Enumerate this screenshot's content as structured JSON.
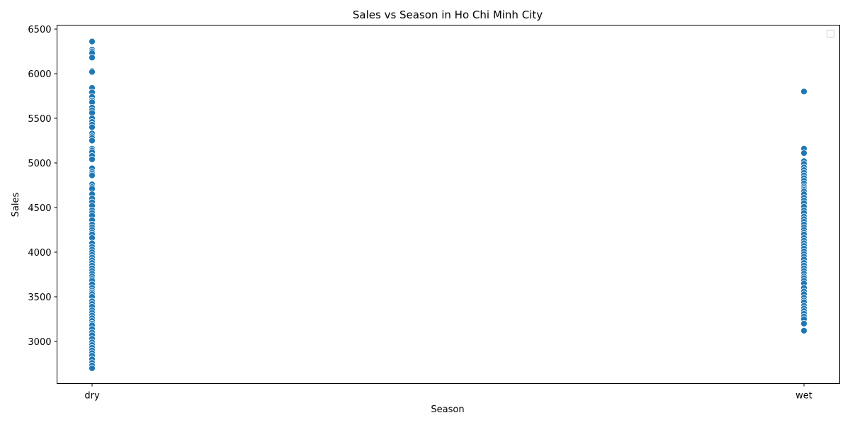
{
  "chart_data": {
    "type": "scatter",
    "title": "Sales vs Season in Ho Chi Minh City",
    "xlabel": "Season",
    "ylabel": "Sales",
    "categories": [
      "dry",
      "wet"
    ],
    "yticks": [
      3000,
      3500,
      4000,
      4500,
      5000,
      5500,
      6000,
      6500
    ],
    "ylim": [
      2500,
      6520
    ],
    "grid": false,
    "legend": {
      "placement": "top-right",
      "entries": []
    },
    "marker_color": "#1f77b4",
    "series": [
      {
        "category": "dry",
        "values": [
          6360,
          6270,
          6250,
          6230,
          6180,
          6030,
          6020,
          5840,
          5790,
          5740,
          5700,
          5680,
          5620,
          5590,
          5560,
          5500,
          5460,
          5430,
          5400,
          5330,
          5300,
          5280,
          5250,
          5160,
          5140,
          5120,
          5080,
          5040,
          4940,
          4900,
          4880,
          4860,
          4760,
          4730,
          4710,
          4650,
          4600,
          4560,
          4520,
          4470,
          4440,
          4410,
          4360,
          4310,
          4280,
          4250,
          4220,
          4200,
          4160,
          4100,
          4060,
          4030,
          4000,
          3970,
          3940,
          3910,
          3880,
          3850,
          3820,
          3790,
          3760,
          3730,
          3700,
          3680,
          3640,
          3600,
          3570,
          3550,
          3530,
          3500,
          3450,
          3420,
          3390,
          3350,
          3320,
          3290,
          3260,
          3230,
          3200,
          3180,
          3140,
          3100,
          3070,
          3030,
          2990,
          2960,
          2930,
          2900,
          2870,
          2840,
          2800,
          2760,
          2730,
          2700
        ]
      },
      {
        "category": "wet",
        "values": [
          5800,
          5160,
          5110,
          5020,
          4990,
          4950,
          4920,
          4890,
          4860,
          4830,
          4800,
          4770,
          4740,
          4720,
          4700,
          4680,
          4650,
          4610,
          4580,
          4550,
          4510,
          4470,
          4440,
          4400,
          4370,
          4340,
          4310,
          4280,
          4250,
          4220,
          4200,
          4160,
          4130,
          4100,
          4070,
          4040,
          4010,
          3980,
          3950,
          3920,
          3880,
          3850,
          3820,
          3790,
          3760,
          3730,
          3710,
          3680,
          3650,
          3600,
          3560,
          3530,
          3490,
          3460,
          3440,
          3400,
          3370,
          3340,
          3310,
          3280,
          3250,
          3200,
          3120
        ]
      }
    ]
  }
}
